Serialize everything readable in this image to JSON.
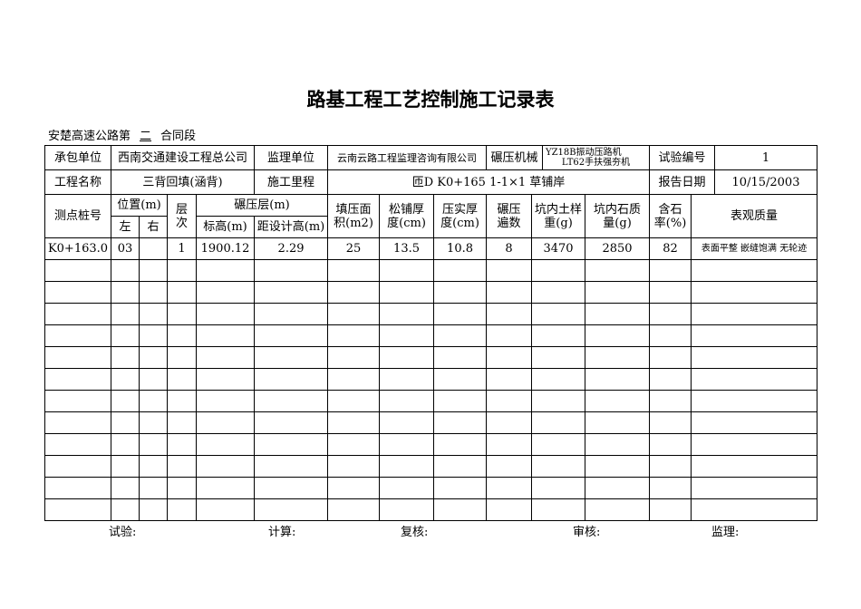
{
  "title": "路基工程工艺控制施工记录表",
  "section": {
    "prefix": "安楚高速公路第",
    "number": "二",
    "suffix": "合同段"
  },
  "info": {
    "contractor_label": "承包单位",
    "contractor": "西南交通建设工程总公司",
    "supervisor_label": "监理单位",
    "supervisor": "云南云路工程监理咨询有限公司",
    "machine_label": "碾压机械",
    "machine_1": "YZ18B振动压路机",
    "machine_2": "LT62手扶强夯机",
    "test_no_label": "试验编号",
    "test_no": "1",
    "project_label": "工程名称",
    "project": "三背回填(涵背)",
    "mileage_label": "施工里程",
    "mileage": "匝D K0+165 1-1×1 草铺岸",
    "date_label": "报告日期",
    "date": "10/15/2003"
  },
  "headers": {
    "station": "测点桩号",
    "position": "位置(m)",
    "left": "左",
    "right": "右",
    "layer": "层次",
    "compaction_layer": "碾压层(m)",
    "elevation": "标高(m)",
    "to_design": "距设计高(m)",
    "area_1": "填压面",
    "area_2": "积(m2)",
    "loose_1": "松铺厚",
    "loose_2": "度(cm)",
    "compact_1": "压实厚",
    "compact_2": "度(cm)",
    "passes_1": "碾压",
    "passes_2": "遍数",
    "soil_1": "坑内土样",
    "soil_2": "重(g)",
    "stone_1": "坑内石质",
    "stone_2": "量(g)",
    "ratio_1": "含石",
    "ratio_2": "率(%)",
    "appearance": "表观质量"
  },
  "rows": [
    {
      "station": "K0+163.0",
      "left": "03",
      "right": "",
      "layer": "1",
      "elevation": "1900.12",
      "to_design": "2.29",
      "area": "25",
      "loose": "13.5",
      "compact": "10.8",
      "passes": "8",
      "soil": "3470",
      "stone": "2850",
      "ratio": "82",
      "appearance": "表面平整 嵌缝饱满 无轮迹"
    }
  ],
  "empty_rows": 12,
  "footer": {
    "test": "试验:",
    "calc": "计算:",
    "review": "复核:",
    "audit": "审核:",
    "supervise": "监理:"
  }
}
